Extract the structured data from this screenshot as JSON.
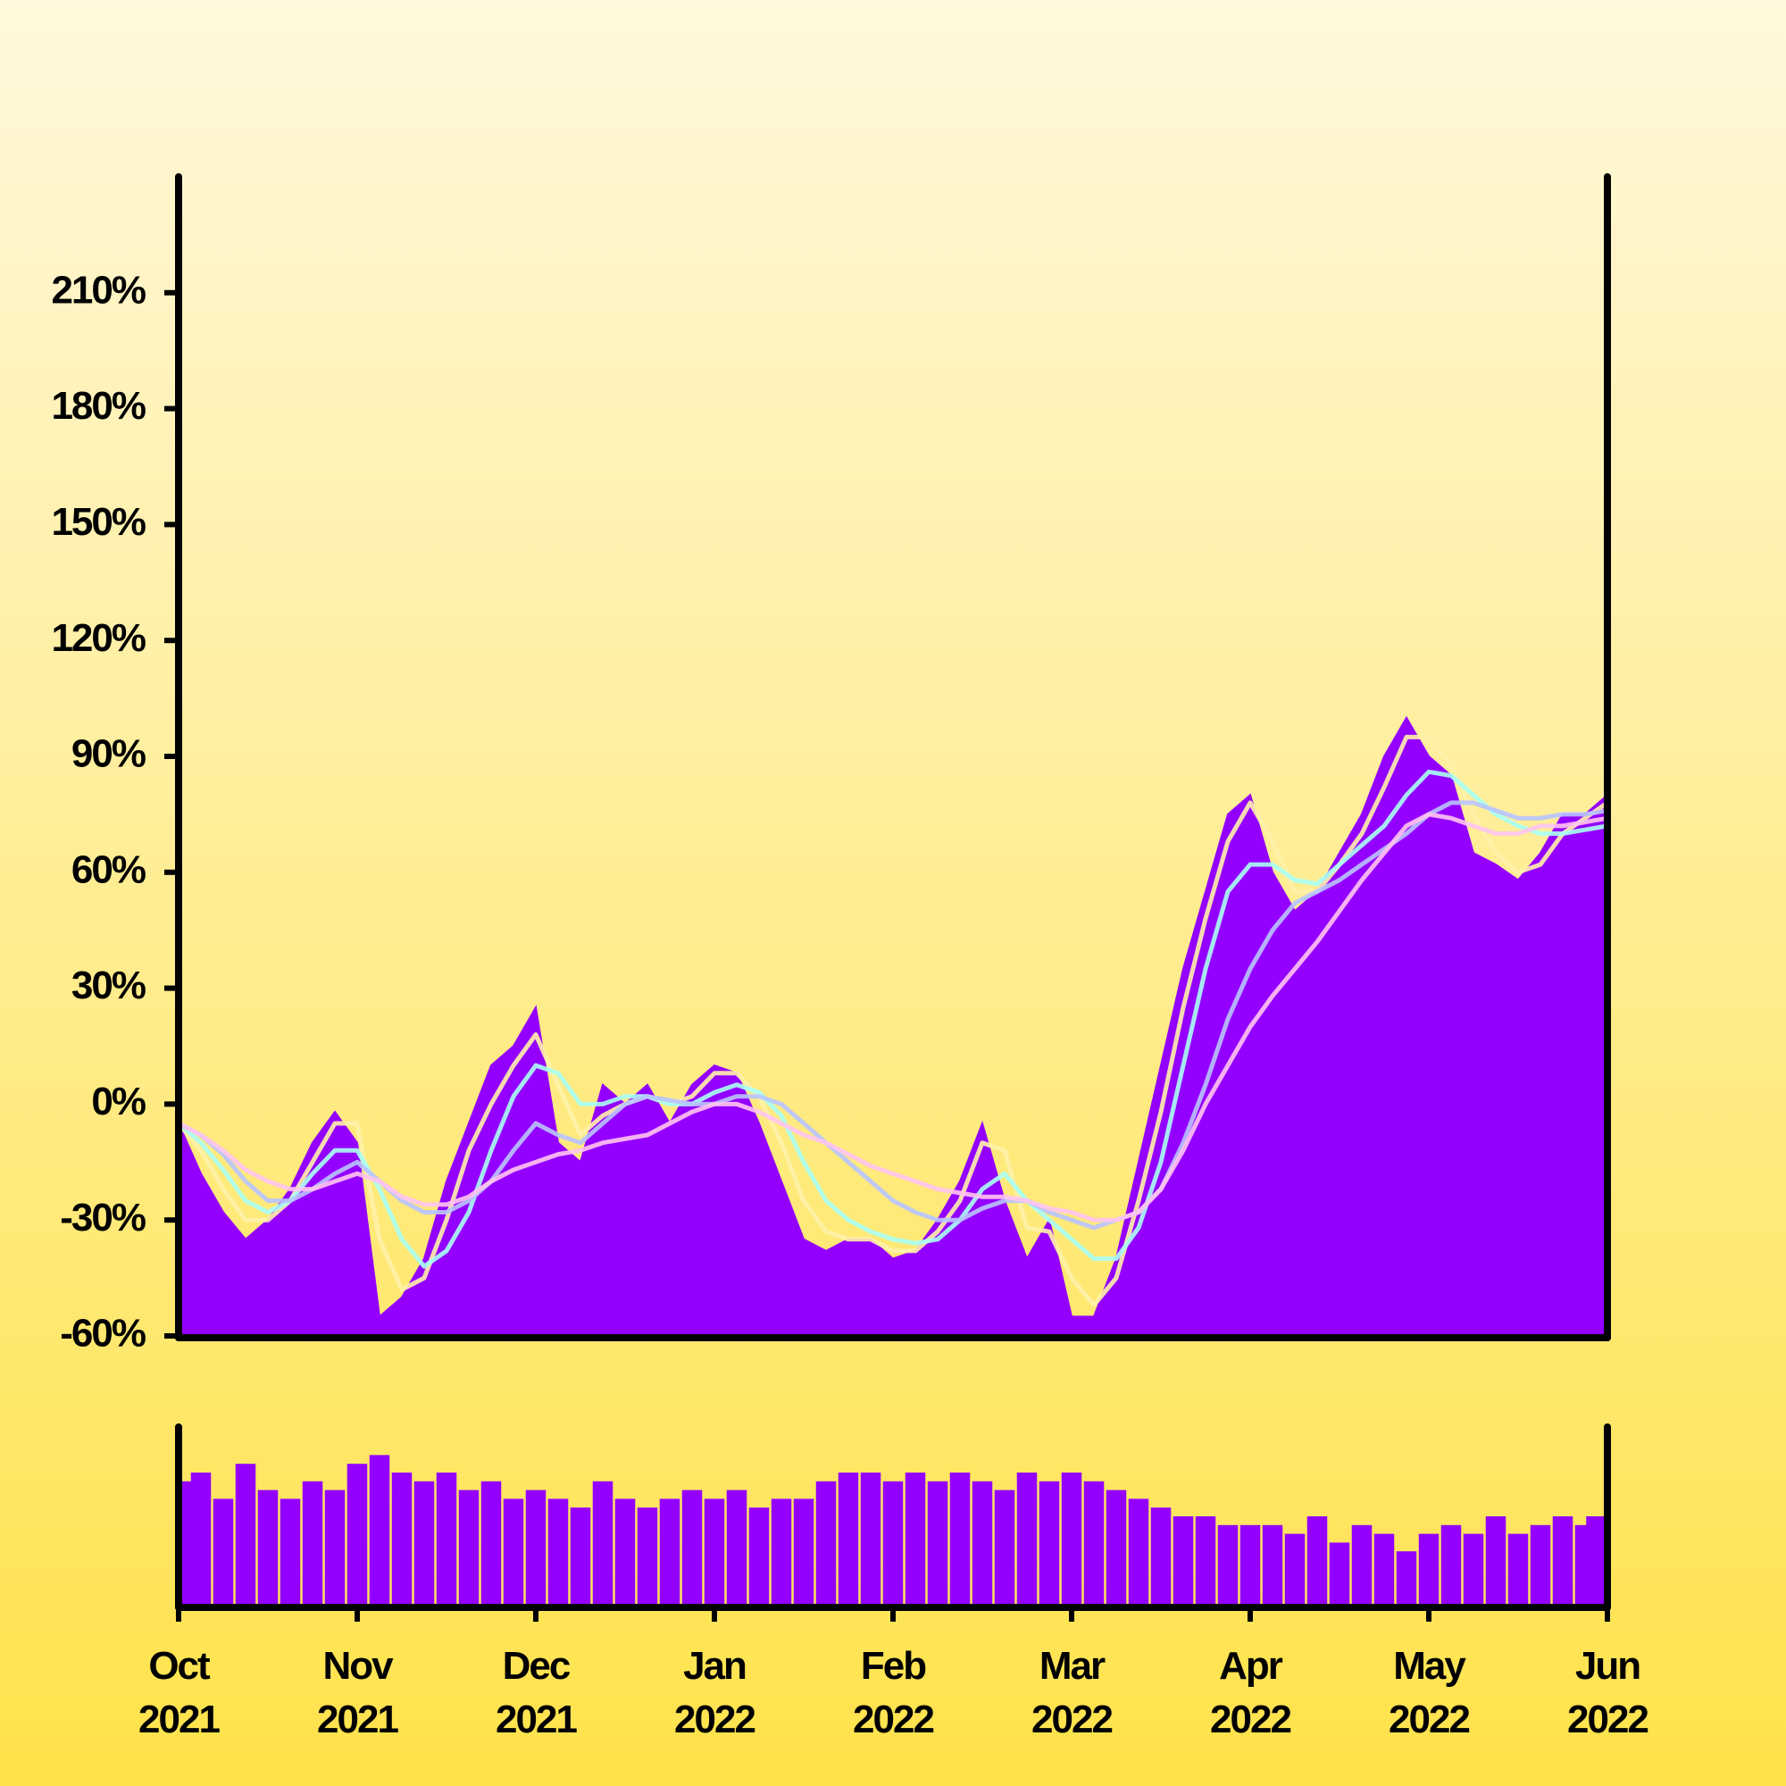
{
  "chart_data": [
    {
      "type": "area",
      "ylim": [
        -60,
        240
      ],
      "yticks": [
        {
          "value": -60,
          "label": "-60%"
        },
        {
          "value": -30,
          "label": "-30%"
        },
        {
          "value": 0,
          "label": "0%"
        },
        {
          "value": 30,
          "label": "30%"
        },
        {
          "value": 60,
          "label": "60%"
        },
        {
          "value": 90,
          "label": "90%"
        },
        {
          "value": 120,
          "label": "120%"
        },
        {
          "value": 150,
          "label": "150%"
        },
        {
          "value": 180,
          "label": "180%"
        },
        {
          "value": 210,
          "label": "210%"
        }
      ],
      "series": [
        {
          "style": "area",
          "color": "#9400ff",
          "values": [
            -5,
            -18,
            -28,
            -35,
            -30,
            -22,
            -10,
            -2,
            -10,
            -55,
            -50,
            -40,
            -20,
            -5,
            10,
            15,
            25,
            -10,
            -15,
            5,
            0,
            5,
            -5,
            5,
            10,
            8,
            -5,
            -20,
            -35,
            -38,
            -35,
            -35,
            -40,
            -38,
            -30,
            -20,
            -5,
            -25,
            -40,
            -30,
            -55,
            -55,
            -40,
            -15,
            10,
            35,
            55,
            75,
            80,
            60,
            50,
            55,
            65,
            75,
            90,
            100,
            90,
            85,
            65,
            62,
            58,
            65,
            75,
            75,
            80
          ]
        },
        {
          "style": "line",
          "color": "#fff2a8",
          "values": [
            -5,
            -12,
            -22,
            -30,
            -30,
            -25,
            -15,
            -5,
            -5,
            -35,
            -48,
            -45,
            -30,
            -12,
            0,
            10,
            18,
            5,
            -8,
            -3,
            0,
            2,
            0,
            2,
            8,
            8,
            2,
            -10,
            -25,
            -33,
            -35,
            -35,
            -38,
            -38,
            -33,
            -25,
            -10,
            -12,
            -32,
            -33,
            -45,
            -52,
            -45,
            -25,
            -2,
            25,
            48,
            68,
            78,
            68,
            55,
            55,
            62,
            70,
            82,
            95,
            95,
            88,
            75,
            65,
            60,
            62,
            70,
            74,
            78
          ]
        },
        {
          "style": "line",
          "color": "#a8fff4",
          "values": [
            -5,
            -10,
            -17,
            -25,
            -28,
            -25,
            -18,
            -12,
            -12,
            -22,
            -35,
            -42,
            -38,
            -28,
            -12,
            2,
            10,
            8,
            0,
            0,
            2,
            2,
            0,
            0,
            3,
            5,
            3,
            -3,
            -15,
            -25,
            -30,
            -33,
            -35,
            -36,
            -35,
            -30,
            -22,
            -18,
            -25,
            -30,
            -35,
            -40,
            -40,
            -32,
            -15,
            10,
            35,
            55,
            62,
            62,
            58,
            57,
            62,
            67,
            72,
            80,
            86,
            85,
            80,
            75,
            72,
            70,
            70,
            71,
            72
          ]
        },
        {
          "style": "line",
          "color": "#b8c4ff",
          "values": [
            -5,
            -8,
            -13,
            -20,
            -25,
            -25,
            -22,
            -18,
            -15,
            -20,
            -25,
            -28,
            -28,
            -25,
            -20,
            -12,
            -5,
            -8,
            -10,
            -5,
            0,
            2,
            1,
            0,
            0,
            2,
            2,
            0,
            -5,
            -10,
            -15,
            -20,
            -25,
            -28,
            -30,
            -30,
            -27,
            -25,
            -25,
            -28,
            -30,
            -32,
            -30,
            -28,
            -22,
            -10,
            5,
            22,
            35,
            45,
            52,
            55,
            58,
            62,
            66,
            70,
            75,
            78,
            78,
            76,
            74,
            74,
            75,
            75,
            76
          ]
        },
        {
          "style": "line",
          "color": "#ffc4f0",
          "values": [
            -5,
            -8,
            -12,
            -17,
            -20,
            -22,
            -22,
            -20,
            -18,
            -20,
            -24,
            -26,
            -26,
            -24,
            -20,
            -17,
            -15,
            -13,
            -12,
            -10,
            -9,
            -8,
            -5,
            -2,
            0,
            0,
            -2,
            -5,
            -8,
            -10,
            -13,
            -16,
            -18,
            -20,
            -22,
            -23,
            -24,
            -24,
            -25,
            -27,
            -28,
            -30,
            -30,
            -28,
            -22,
            -12,
            0,
            10,
            20,
            28,
            35,
            42,
            50,
            58,
            65,
            72,
            75,
            74,
            72,
            70,
            70,
            72,
            72,
            73,
            74
          ]
        }
      ]
    },
    {
      "type": "bar",
      "color": "#9400ff",
      "ylim": [
        0,
        100
      ],
      "categories": [
        "Oct 2021",
        null,
        null,
        null,
        null,
        null,
        null,
        null,
        "Nov 2021",
        null,
        null,
        null,
        null,
        null,
        null,
        null,
        "Dec 2021",
        null,
        null,
        null,
        null,
        null,
        null,
        null,
        "Jan 2022",
        null,
        null,
        null,
        null,
        null,
        null,
        null,
        "Feb 2022",
        null,
        null,
        null,
        null,
        null,
        null,
        null,
        "Mar 2022",
        null,
        null,
        null,
        null,
        null,
        null,
        null,
        "Apr 2022",
        null,
        null,
        null,
        null,
        null,
        null,
        null,
        "May 2022",
        null,
        null,
        null,
        null,
        null,
        null,
        null,
        "Jun 2022"
      ],
      "values": [
        70,
        75,
        60,
        80,
        65,
        60,
        70,
        65,
        80,
        85,
        75,
        70,
        75,
        65,
        70,
        60,
        65,
        60,
        55,
        70,
        60,
        55,
        60,
        65,
        60,
        65,
        55,
        60,
        60,
        70,
        75,
        75,
        70,
        75,
        70,
        75,
        70,
        65,
        75,
        70,
        75,
        70,
        65,
        60,
        55,
        50,
        50,
        45,
        45,
        45,
        40,
        50,
        35,
        45,
        40,
        30,
        40,
        45,
        40,
        50,
        40,
        45,
        50,
        45,
        50
      ]
    }
  ]
}
